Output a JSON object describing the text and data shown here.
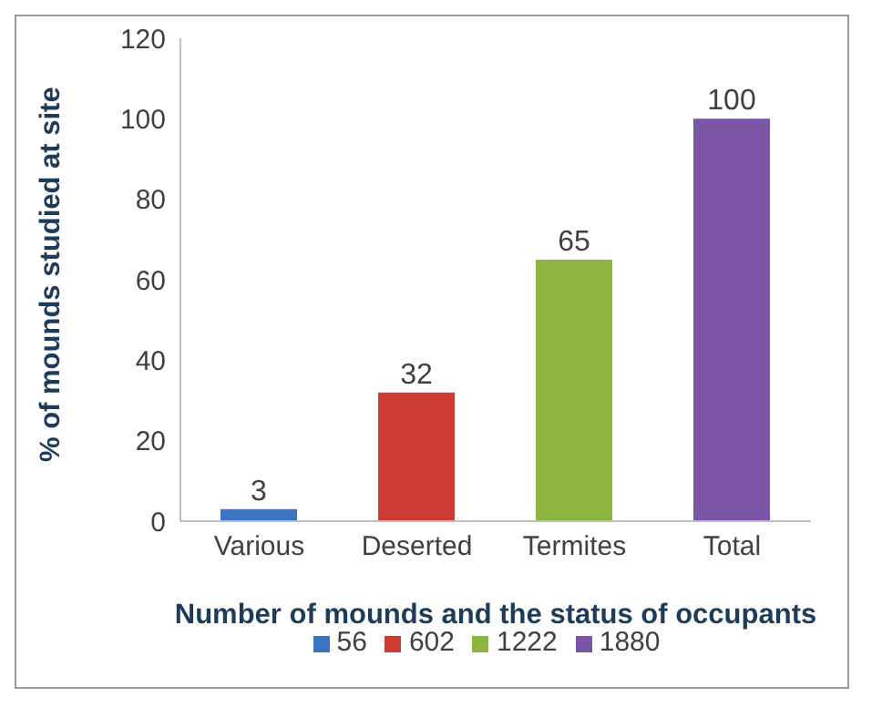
{
  "chart_data": {
    "type": "bar",
    "xlabel": "Number of mounds and the status of occupants",
    "ylabel": "% of mounds studied at site",
    "categories": [
      "Various",
      "Deserted",
      "Termites",
      "Total"
    ],
    "series": [
      {
        "name": "56",
        "color": "#3b74c0",
        "values": [
          3,
          null,
          null,
          null
        ]
      },
      {
        "name": "602",
        "color": "#cc3b33",
        "values": [
          null,
          32,
          null,
          null
        ]
      },
      {
        "name": "1222",
        "color": "#8cb43f",
        "values": [
          null,
          null,
          65,
          null
        ]
      },
      {
        "name": "1880",
        "color": "#7b55a6",
        "values": [
          null,
          null,
          null,
          100
        ]
      }
    ],
    "ylim": [
      0,
      120
    ],
    "yticks": [
      0,
      20,
      40,
      60,
      80,
      100,
      120
    ],
    "grid": false,
    "legend": "bottom",
    "data_labels": true
  }
}
